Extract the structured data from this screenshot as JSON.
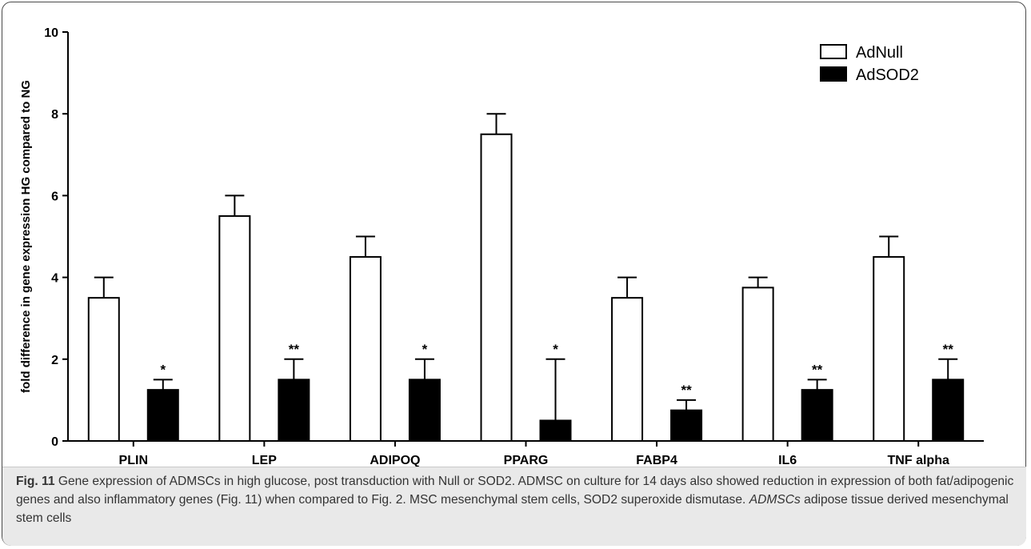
{
  "chart_data": {
    "type": "bar",
    "ylabel": "fold difference in gene expression HG compared to  NG",
    "ylim": [
      0,
      10
    ],
    "yticks": [
      0,
      2,
      4,
      6,
      8,
      10
    ],
    "categories": [
      "PLIN",
      "LEP",
      "ADIPOQ",
      "PPARG",
      "FABP4",
      "IL6",
      "TNF alpha"
    ],
    "series": [
      {
        "name": "AdNull",
        "fill": "#ffffff",
        "values": [
          3.5,
          5.5,
          4.5,
          7.5,
          3.5,
          3.75,
          4.5
        ],
        "errors": [
          0.5,
          0.5,
          0.5,
          0.5,
          0.5,
          0.25,
          0.5
        ],
        "significance": [
          "",
          "",
          "",
          "",
          "",
          "",
          ""
        ]
      },
      {
        "name": "AdSOD2",
        "fill": "#000000",
        "values": [
          1.25,
          1.5,
          1.5,
          0.5,
          0.75,
          1.25,
          1.5
        ],
        "errors": [
          0.25,
          0.5,
          0.5,
          1.5,
          0.25,
          0.25,
          0.5
        ],
        "significance": [
          "*",
          "**",
          "*",
          "*",
          "**",
          "**",
          "**"
        ]
      }
    ],
    "legend": "top-right",
    "grid": false
  },
  "caption": {
    "fig_label": "Fig. 11",
    "text_1": " Gene expression of ADMSCs in high glucose, post transduction with Null or SOD2. ADMSC on culture for 14 days also showed reduction in expression of both fat/adipogenic genes and also inflammatory genes (Fig. 11) when compared to Fig. 2. MSC mesenchymal stem cells, SOD2 superoxide dismutase. ",
    "abbr": "ADMSCs",
    "text_2": " adipose tissue derived mesenchymal stem cells"
  }
}
